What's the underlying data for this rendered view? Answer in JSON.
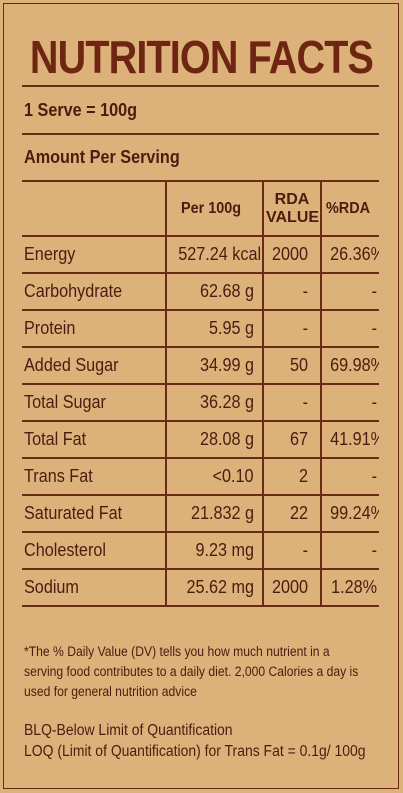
{
  "title": "NUTRITION FACTS",
  "serve": "1 Serve = 100g",
  "amount_per_serving": "Amount Per Serving",
  "headers": {
    "per100g": "Per 100g",
    "rda_line1": "RDA",
    "rda_line2": "VALUE",
    "pct_rda": "%RDA"
  },
  "rows": [
    {
      "nutrient": "Energy",
      "per100g": "527.24 kcal",
      "rda": "2000",
      "pct": "26.36%"
    },
    {
      "nutrient": "Carbohydrate",
      "per100g": "62.68 g",
      "rda": "-",
      "pct": "-"
    },
    {
      "nutrient": "Protein",
      "per100g": "5.95 g",
      "rda": "-",
      "pct": "-"
    },
    {
      "nutrient": "Added Sugar",
      "per100g": "34.99 g",
      "rda": "50",
      "pct": "69.98%"
    },
    {
      "nutrient": "Total Sugar",
      "per100g": "36.28 g",
      "rda": "-",
      "pct": "-"
    },
    {
      "nutrient": "Total Fat",
      "per100g": "28.08 g",
      "rda": "67",
      "pct": "41.91%"
    },
    {
      "nutrient": "Trans Fat",
      "per100g": "<0.10",
      "rda": "2",
      "pct": "-"
    },
    {
      "nutrient": "Saturated Fat",
      "per100g": "21.832 g",
      "rda": "22",
      "pct": "99.24%"
    },
    {
      "nutrient": "Cholesterol",
      "per100g": "9.23 mg",
      "rda": "-",
      "pct": "-"
    },
    {
      "nutrient": "Sodium",
      "per100g": "25.62 mg",
      "rda": "2000",
      "pct": "1.28%"
    }
  ],
  "footnote": "*The % Daily Value (DV) tells you how much nutrient in a serving food contributes to a daily diet. 2,000 Calories a day is used for general nutrition advice",
  "blq": "BLQ-Below Limit of Quantification",
  "loq": "LOQ (Limit of Quantification) for Trans Fat = 0.1g/ 100g",
  "colors": {
    "background": "#dcb17a",
    "title": "#6e2612",
    "rule": "#6b2a14",
    "text": "#4a1d10"
  }
}
